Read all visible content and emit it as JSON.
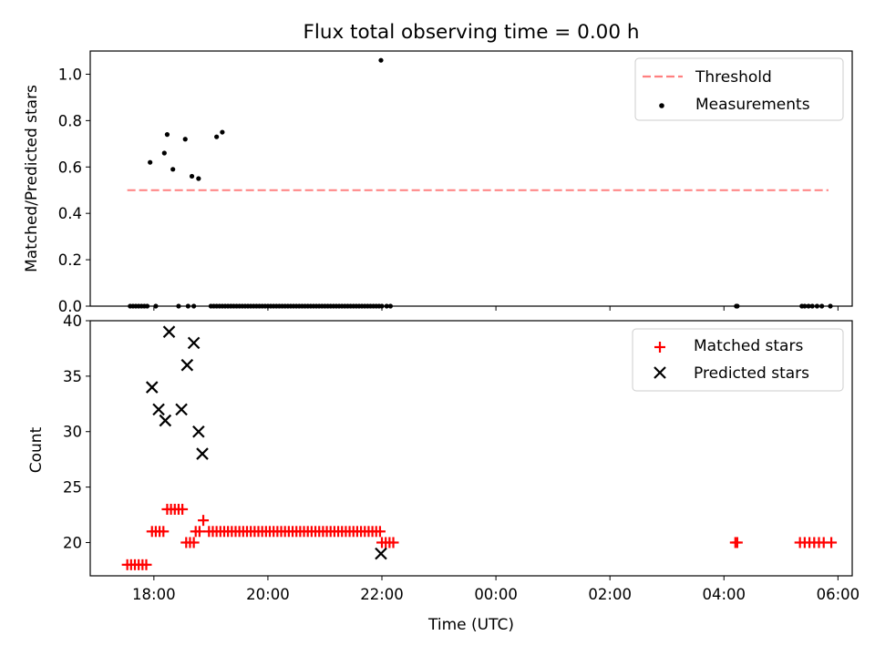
{
  "title": "Flux total observing time = 0.00 h",
  "chart_data": [
    {
      "type": "scatter",
      "ylabel": "Matched/Predicted stars",
      "xlabel": "",
      "ylim": [
        0,
        1.1
      ],
      "xlim": [
        "16:53",
        "06:15"
      ],
      "yticks": [
        0.0,
        0.2,
        0.4,
        0.6,
        0.8,
        1.0
      ],
      "ytick_labels": [
        "0.0",
        "0.2",
        "0.4",
        "0.6",
        "0.8",
        "1.0"
      ],
      "legend_position": "top-right",
      "threshold": {
        "name": "Threshold",
        "value": 0.5,
        "x_range": [
          "17:32",
          "05:50"
        ],
        "color": "#ff8080",
        "style": "dashed"
      },
      "series": [
        {
          "name": "Measurements",
          "marker": "dot",
          "color": "#000000",
          "x": [
            "17:56",
            "18:11",
            "18:14",
            "18:20",
            "18:33",
            "18:40",
            "18:47",
            "19:06",
            "19:12",
            "21:59",
            "17:35",
            "17:38",
            "17:41",
            "17:44",
            "17:47",
            "17:50",
            "17:53",
            "18:02",
            "18:26",
            "18:36",
            "18:42",
            "19:00",
            "19:03",
            "19:06",
            "19:09",
            "19:12",
            "19:15",
            "19:18",
            "19:21",
            "19:24",
            "19:27",
            "19:30",
            "19:33",
            "19:36",
            "19:39",
            "19:42",
            "19:45",
            "19:48",
            "19:51",
            "19:54",
            "19:57",
            "20:00",
            "20:03",
            "20:06",
            "20:09",
            "20:12",
            "20:15",
            "20:18",
            "20:21",
            "20:24",
            "20:27",
            "20:30",
            "20:33",
            "20:36",
            "20:39",
            "20:42",
            "20:45",
            "20:48",
            "20:51",
            "20:54",
            "20:57",
            "21:00",
            "21:03",
            "21:06",
            "21:09",
            "21:12",
            "21:15",
            "21:18",
            "21:21",
            "21:24",
            "21:27",
            "21:30",
            "21:33",
            "21:36",
            "21:39",
            "21:42",
            "21:45",
            "21:48",
            "21:51",
            "21:54",
            "21:57",
            "22:00",
            "22:05",
            "22:09",
            "04:13",
            "04:14",
            "05:22",
            "05:25",
            "05:29",
            "05:33",
            "05:38",
            "05:43",
            "05:52"
          ],
          "y": [
            0.62,
            0.66,
            0.74,
            0.59,
            0.72,
            0.56,
            0.55,
            0.73,
            0.75,
            1.06,
            0,
            0,
            0,
            0,
            0,
            0,
            0,
            0,
            0,
            0,
            0,
            0,
            0,
            0,
            0,
            0,
            0,
            0,
            0,
            0,
            0,
            0,
            0,
            0,
            0,
            0,
            0,
            0,
            0,
            0,
            0,
            0,
            0,
            0,
            0,
            0,
            0,
            0,
            0,
            0,
            0,
            0,
            0,
            0,
            0,
            0,
            0,
            0,
            0,
            0,
            0,
            0,
            0,
            0,
            0,
            0,
            0,
            0,
            0,
            0,
            0,
            0,
            0,
            0,
            0,
            0,
            0,
            0,
            0,
            0,
            0,
            0,
            0,
            0,
            0,
            0,
            0,
            0,
            0,
            0,
            0,
            0,
            0
          ]
        }
      ]
    },
    {
      "type": "scatter",
      "ylabel": "Count",
      "xlabel": "Time (UTC)",
      "ylim": [
        17,
        40
      ],
      "xlim": [
        "16:53",
        "06:15"
      ],
      "yticks": [
        20,
        25,
        30,
        35,
        40
      ],
      "ytick_labels": [
        "20",
        "25",
        "30",
        "35",
        "40"
      ],
      "xticks": [
        "18:00",
        "20:00",
        "22:00",
        "00:00",
        "02:00",
        "04:00",
        "06:00"
      ],
      "xtick_labels": [
        "18:00",
        "20:00",
        "22:00",
        "00:00",
        "02:00",
        "04:00",
        "06:00"
      ],
      "legend_position": "top-right",
      "series": [
        {
          "name": "Matched stars",
          "marker": "plus",
          "color": "#ff0000",
          "x": [
            "17:32",
            "17:36",
            "17:40",
            "17:44",
            "17:48",
            "17:52",
            "17:58",
            "18:02",
            "18:06",
            "18:10",
            "18:14",
            "18:18",
            "18:22",
            "18:26",
            "18:30",
            "18:34",
            "18:38",
            "18:42",
            "18:44",
            "18:48",
            "18:52",
            "18:58",
            "19:02",
            "19:06",
            "19:10",
            "19:14",
            "19:18",
            "19:22",
            "19:26",
            "19:30",
            "19:34",
            "19:38",
            "19:42",
            "19:46",
            "19:50",
            "19:54",
            "19:58",
            "20:02",
            "20:06",
            "20:10",
            "20:14",
            "20:18",
            "20:22",
            "20:26",
            "20:30",
            "20:34",
            "20:38",
            "20:42",
            "20:46",
            "20:50",
            "20:54",
            "20:58",
            "21:02",
            "21:06",
            "21:10",
            "21:14",
            "21:18",
            "21:22",
            "21:26",
            "21:30",
            "21:34",
            "21:38",
            "21:42",
            "21:46",
            "21:50",
            "21:54",
            "21:58",
            "22:00",
            "22:04",
            "22:08",
            "22:12",
            "04:12",
            "04:14",
            "05:20",
            "05:25",
            "05:30",
            "05:35",
            "05:40",
            "05:45",
            "05:53"
          ],
          "y": [
            18,
            18,
            18,
            18,
            18,
            18,
            21,
            21,
            21,
            21,
            23,
            23,
            23,
            23,
            23,
            20,
            20,
            20,
            21,
            21,
            22,
            21,
            21,
            21,
            21,
            21,
            21,
            21,
            21,
            21,
            21,
            21,
            21,
            21,
            21,
            21,
            21,
            21,
            21,
            21,
            21,
            21,
            21,
            21,
            21,
            21,
            21,
            21,
            21,
            21,
            21,
            21,
            21,
            21,
            21,
            21,
            21,
            21,
            21,
            21,
            21,
            21,
            21,
            21,
            21,
            21,
            21,
            20,
            20,
            20,
            20,
            20,
            20,
            20,
            20,
            20,
            20,
            20,
            20,
            20
          ]
        },
        {
          "name": "Predicted stars",
          "marker": "x",
          "color": "#000000",
          "x": [
            "17:58",
            "18:05",
            "18:12",
            "18:16",
            "18:29",
            "18:35",
            "18:42",
            "18:47",
            "18:51",
            "21:59"
          ],
          "y": [
            34,
            32,
            31,
            39,
            32,
            36,
            38,
            30,
            28,
            19
          ]
        }
      ]
    }
  ]
}
